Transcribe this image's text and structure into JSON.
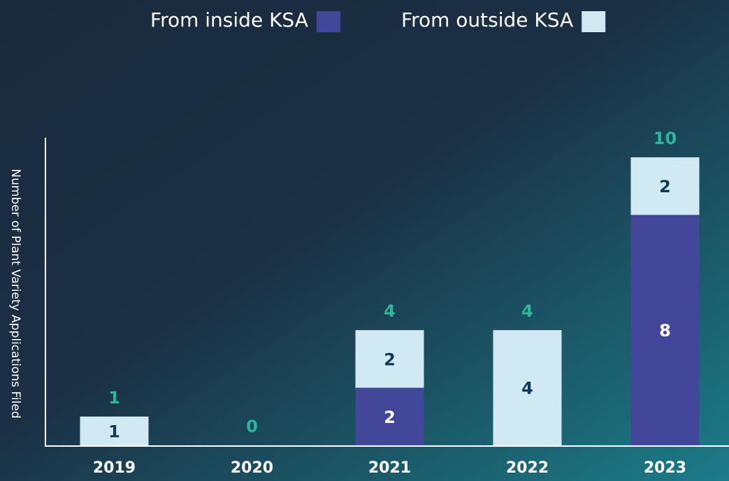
{
  "chart_data": {
    "type": "stacked_bar",
    "y_label": "Number of Plant Variety Applications Filed",
    "categories": [
      "2019",
      "2020",
      "2021",
      "2022",
      "2023"
    ],
    "series": [
      {
        "name": "From inside KSA",
        "color": "#43479a",
        "values": [
          0,
          0,
          2,
          0,
          8
        ]
      },
      {
        "name": "From outside KSA",
        "color": "#d0e9f3",
        "values": [
          1,
          0,
          2,
          4,
          2
        ]
      }
    ],
    "totals": [
      1,
      0,
      4,
      4,
      10
    ],
    "ylim": [
      0,
      10
    ]
  }
}
